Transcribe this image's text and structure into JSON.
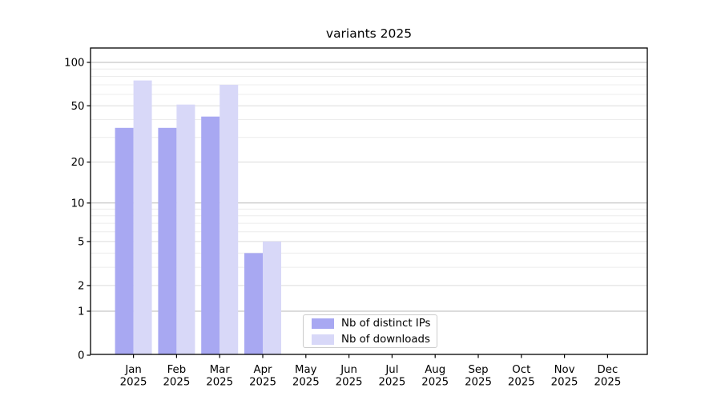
{
  "title": "variants 2025",
  "chart_data": {
    "type": "bar",
    "title": "variants 2025",
    "categories": [
      "Jan",
      "Feb",
      "Mar",
      "Apr",
      "May",
      "Jun",
      "Jul",
      "Aug",
      "Sep",
      "Oct",
      "Nov",
      "Dec"
    ],
    "x_tick_second_line": "2025",
    "series": [
      {
        "name": "Nb of distinct IPs",
        "color": "#a8a8f2",
        "values": [
          35,
          35,
          42,
          4,
          null,
          null,
          null,
          null,
          null,
          null,
          null,
          null
        ]
      },
      {
        "name": "Nb of downloads",
        "color": "#d8d8f8",
        "values": [
          75,
          51,
          70,
          5,
          null,
          null,
          null,
          null,
          null,
          null,
          null,
          null
        ]
      }
    ],
    "y_axis": {
      "scale": "log10(value+1)",
      "ticks": [
        0,
        1,
        2,
        5,
        10,
        20,
        50,
        100
      ],
      "major_gridlines": [
        1,
        10,
        100
      ],
      "secondary_gridlines": [
        2,
        5,
        20,
        50
      ],
      "minor_gridlines": [
        3,
        4,
        6,
        7,
        8,
        9,
        30,
        40,
        60,
        70,
        80,
        90
      ],
      "max": 125
    },
    "grid": true,
    "legend_position": "bottom-center-inside"
  },
  "colors": {
    "bar_distinct_ips": "#a8a8f2",
    "bar_downloads": "#d8d8f8",
    "gridline_major": "#b9b9b9",
    "gridline_secondary": "#dcdcdc",
    "gridline_minor": "#ececec",
    "axis": "#000000",
    "background": "#ffffff"
  }
}
